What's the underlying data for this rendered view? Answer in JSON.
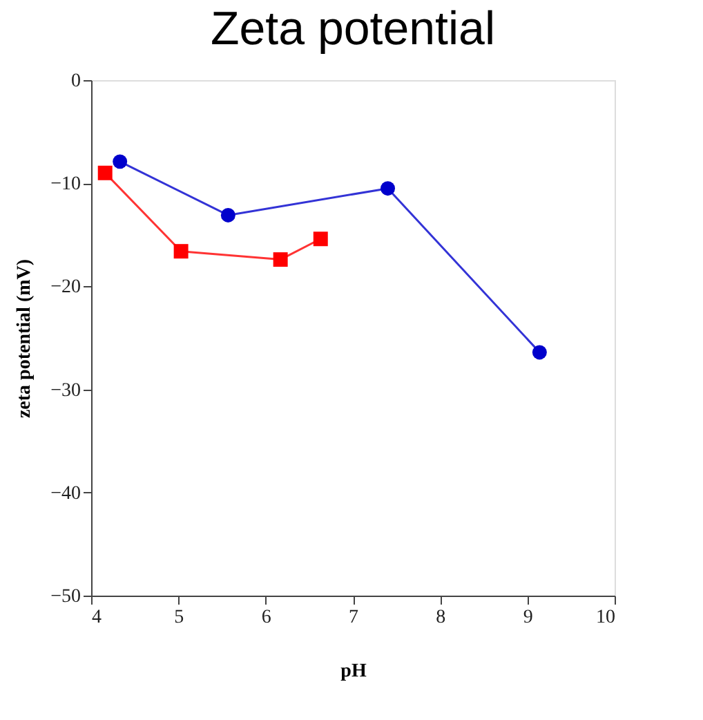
{
  "chart_data": {
    "type": "line",
    "title": "Zeta potential",
    "xlabel": "pH",
    "ylabel": "zeta potential (mV)",
    "xlim": [
      4,
      10
    ],
    "xticks": [
      4,
      5,
      6,
      7,
      8,
      9,
      10
    ],
    "ylim": [
      -50,
      0
    ],
    "yticks": [
      -50,
      -40,
      -30,
      -20,
      -10,
      0
    ],
    "grid": false,
    "series": [
      {
        "color": "#0000cc",
        "marker": "circle",
        "x": [
          4.33,
          5.57,
          7.4,
          9.14
        ],
        "values": [
          -7.9,
          -13.1,
          -10.5,
          -26.4
        ]
      },
      {
        "color": "#ff0000",
        "marker": "square",
        "x": [
          4.16,
          5.03,
          6.17,
          6.63
        ],
        "values": [
          -9.0,
          -16.6,
          -17.4,
          -15.4
        ]
      }
    ]
  }
}
